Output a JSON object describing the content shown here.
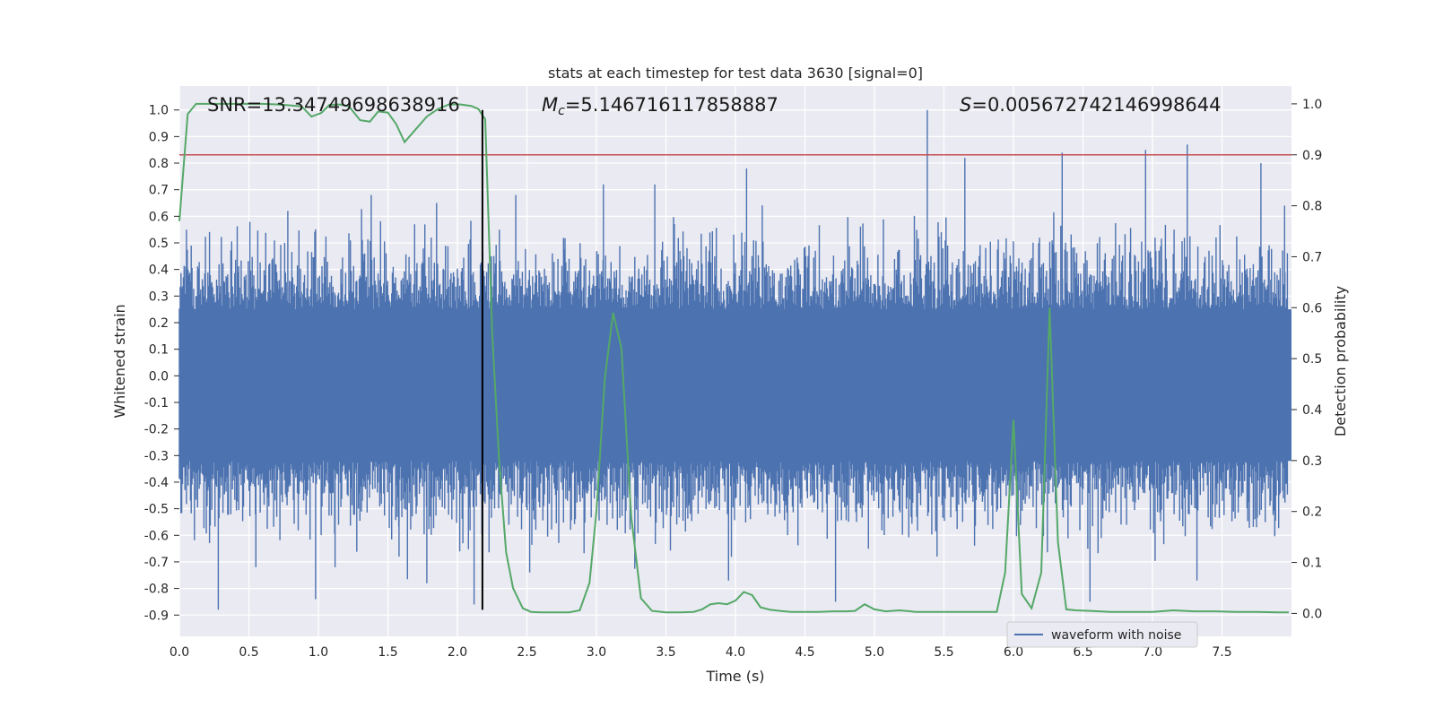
{
  "chart_data": {
    "type": "line",
    "title": "stats at each timestep for test data 3630 [signal=0]",
    "xlabel": "Time (s)",
    "ylabel_left": "Whitened strain",
    "ylabel_right": "Detection probability",
    "xlim": [
      0.0,
      8.0
    ],
    "ylim_left": [
      -0.98,
      1.09
    ],
    "ylim_right": [
      -0.045,
      1.035
    ],
    "x_ticks": [
      "0.0",
      "0.5",
      "1.0",
      "1.5",
      "2.0",
      "2.5",
      "3.0",
      "3.5",
      "4.0",
      "4.5",
      "5.0",
      "5.5",
      "6.0",
      "6.5",
      "7.0",
      "7.5"
    ],
    "y_left_ticks": [
      "1.0",
      "0.9",
      "0.8",
      "0.7",
      "0.6",
      "0.5",
      "0.4",
      "0.3",
      "0.2",
      "0.1",
      "0.0",
      "-0.1",
      "-0.2",
      "-0.3",
      "-0.4",
      "-0.5",
      "-0.6",
      "-0.7",
      "-0.8",
      "-0.9"
    ],
    "y_right_ticks": [
      "1.0",
      "0.9",
      "0.8",
      "0.7",
      "0.6",
      "0.5",
      "0.4",
      "0.3",
      "0.2",
      "0.1",
      "0.0"
    ],
    "annotations": {
      "snr": "SNR=13.34749698638916",
      "mc_symbol": "M",
      "mc_sub": "c",
      "mc_value": "=5.146716117858887",
      "s_symbol": "S",
      "s_value": "=0.005672742146998644"
    },
    "threshold": {
      "value": 0.9,
      "axis": "right",
      "color": "#c44e52"
    },
    "vertical_marker": {
      "x": 2.18,
      "y_range": [
        -0.88,
        1.0
      ],
      "color": "#000000"
    },
    "series": [
      {
        "name": "waveform with noise",
        "axis": "left",
        "color": "#4c72b0",
        "envelope_core": [
          -0.32,
          0.25
        ],
        "spike_extremes": [
          {
            "x": 0.28,
            "y": -0.88
          },
          {
            "x": 0.55,
            "y": -0.72
          },
          {
            "x": 0.78,
            "y": 0.62
          },
          {
            "x": 0.98,
            "y": -0.84
          },
          {
            "x": 1.12,
            "y": -0.72
          },
          {
            "x": 1.38,
            "y": 0.68
          },
          {
            "x": 1.58,
            "y": -0.68
          },
          {
            "x": 1.78,
            "y": -0.78
          },
          {
            "x": 1.85,
            "y": 0.65
          },
          {
            "x": 2.12,
            "y": -0.86
          },
          {
            "x": 2.42,
            "y": 0.68
          },
          {
            "x": 2.52,
            "y": -0.74
          },
          {
            "x": 3.05,
            "y": 0.72
          },
          {
            "x": 3.42,
            "y": 0.72
          },
          {
            "x": 3.95,
            "y": -0.77
          },
          {
            "x": 4.08,
            "y": 0.78
          },
          {
            "x": 4.72,
            "y": -0.85
          },
          {
            "x": 5.38,
            "y": 1.0
          },
          {
            "x": 5.45,
            "y": -0.68
          },
          {
            "x": 5.65,
            "y": 0.82
          },
          {
            "x": 6.35,
            "y": 0.84
          },
          {
            "x": 6.55,
            "y": -0.85
          },
          {
            "x": 6.95,
            "y": 0.85
          },
          {
            "x": 7.25,
            "y": 0.87
          },
          {
            "x": 7.32,
            "y": -0.77
          },
          {
            "x": 7.78,
            "y": 0.8
          },
          {
            "x": 7.95,
            "y": 0.64
          },
          {
            "x": 7.88,
            "y": -0.6
          }
        ]
      },
      {
        "name": "detection probability",
        "axis": "right",
        "color": "#55a868",
        "x": [
          0.0,
          0.06,
          0.12,
          0.2,
          0.3,
          0.4,
          0.5,
          0.6,
          0.7,
          0.8,
          0.88,
          0.95,
          1.02,
          1.08,
          1.15,
          1.22,
          1.3,
          1.37,
          1.43,
          1.5,
          1.56,
          1.62,
          1.7,
          1.78,
          1.86,
          1.94,
          2.02,
          2.1,
          2.15,
          2.2,
          2.25,
          2.3,
          2.35,
          2.4,
          2.47,
          2.53,
          2.6,
          2.7,
          2.8,
          2.88,
          2.95,
          3.0,
          3.06,
          3.12,
          3.18,
          3.25,
          3.32,
          3.4,
          3.5,
          3.6,
          3.7,
          3.76,
          3.82,
          3.88,
          3.94,
          4.0,
          4.06,
          4.12,
          4.18,
          4.25,
          4.32,
          4.4,
          4.5,
          4.6,
          4.7,
          4.8,
          4.86,
          4.93,
          5.0,
          5.08,
          5.18,
          5.3,
          5.45,
          5.6,
          5.75,
          5.88,
          5.94,
          6.0,
          6.06,
          6.13,
          6.2,
          6.26,
          6.32,
          6.38,
          6.45,
          6.55,
          6.7,
          6.85,
          7.0,
          7.15,
          7.3,
          7.45,
          7.6,
          7.75,
          7.9,
          7.98
        ],
        "y": [
          0.77,
          0.98,
          1.0,
          1.0,
          1.0,
          1.0,
          1.0,
          1.0,
          0.999,
          0.997,
          0.995,
          0.975,
          0.982,
          0.998,
          0.999,
          0.995,
          0.968,
          0.965,
          0.985,
          0.983,
          0.96,
          0.925,
          0.95,
          0.975,
          0.99,
          0.999,
          0.999,
          0.996,
          0.99,
          0.97,
          0.55,
          0.3,
          0.12,
          0.05,
          0.01,
          0.003,
          0.002,
          0.002,
          0.002,
          0.006,
          0.06,
          0.2,
          0.46,
          0.59,
          0.52,
          0.19,
          0.03,
          0.005,
          0.002,
          0.002,
          0.003,
          0.008,
          0.018,
          0.02,
          0.018,
          0.025,
          0.042,
          0.036,
          0.012,
          0.007,
          0.005,
          0.003,
          0.003,
          0.003,
          0.004,
          0.004,
          0.005,
          0.018,
          0.008,
          0.004,
          0.006,
          0.003,
          0.003,
          0.003,
          0.003,
          0.003,
          0.08,
          0.38,
          0.038,
          0.01,
          0.08,
          0.6,
          0.14,
          0.008,
          0.006,
          0.005,
          0.003,
          0.003,
          0.003,
          0.006,
          0.004,
          0.004,
          0.003,
          0.003,
          0.002,
          0.002
        ]
      }
    ],
    "legend": {
      "placement": "lower-center-right",
      "label": "waveform with noise"
    }
  }
}
